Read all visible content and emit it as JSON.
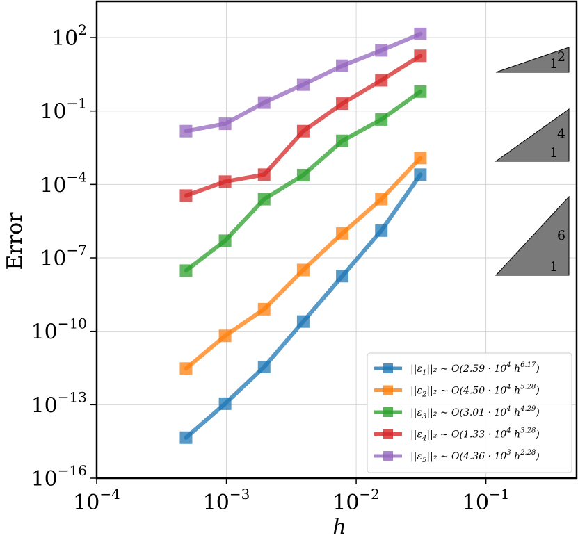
{
  "chart_data": {
    "type": "line",
    "scale": {
      "x": "log",
      "y": "log"
    },
    "xlabel": "h",
    "ylabel": "Error",
    "xlim": [
      0.0001,
      0.5
    ],
    "ylim": [
      1e-16,
      3000
    ],
    "grid": true,
    "x_ticks": [
      {
        "value": 0.0001,
        "base": "10",
        "exp": "−4"
      },
      {
        "value": 0.001,
        "base": "10",
        "exp": "−3"
      },
      {
        "value": 0.01,
        "base": "10",
        "exp": "−2"
      },
      {
        "value": 0.1,
        "base": "10",
        "exp": "−1"
      }
    ],
    "y_ticks": [
      {
        "value": 1e-16,
        "base": "10",
        "exp": "−16"
      },
      {
        "value": 1e-13,
        "base": "10",
        "exp": "−13"
      },
      {
        "value": 1e-10,
        "base": "10",
        "exp": "−10"
      },
      {
        "value": 1e-07,
        "base": "10",
        "exp": "−7"
      },
      {
        "value": 0.0001,
        "base": "10",
        "exp": "−4"
      },
      {
        "value": 0.1,
        "base": "10",
        "exp": "−1"
      },
      {
        "value": 100,
        "base": "10",
        "exp": "2"
      }
    ],
    "x": [
      0.00048828,
      0.00097656,
      0.0019531,
      0.0039063,
      0.0078125,
      0.015625,
      0.03125
    ],
    "series": [
      {
        "name": "||ε₁||₂ ∼ O(2.59 · 10⁴ h^6.17)",
        "color": "#1f77b4",
        "marker": "square",
        "values": [
          4.5e-15,
          1.1e-13,
          3.5e-12,
          2.5e-10,
          1.8e-08,
          1.3e-06,
          0.00025
        ]
      },
      {
        "name": "||ε₂||₂ ∼ O(4.50 · 10⁴ h^5.28)",
        "color": "#ff7f0e",
        "marker": "square",
        "values": [
          3e-12,
          6.5e-11,
          8e-10,
          3.2e-08,
          1e-06,
          2.5e-05,
          0.0012
        ]
      },
      {
        "name": "||ε₃||₂ ∼ O(3.01 · 10⁴ h^4.29)",
        "color": "#2ca02c",
        "marker": "square",
        "values": [
          3e-08,
          5e-07,
          2.5e-05,
          0.00024,
          0.006,
          0.045,
          0.62
        ]
      },
      {
        "name": "||ε₄||₂ ∼ O(1.33 · 10⁴ h^3.28)",
        "color": "#d62728",
        "marker": "square",
        "values": [
          3.5e-05,
          0.00013,
          0.00025,
          0.015,
          0.2,
          1.8,
          18.0
        ]
      },
      {
        "name": "||ε₅||₂ ∼ O(4.36 · 10³ h^2.28)",
        "color": "#9467bd",
        "marker": "square",
        "values": [
          0.015,
          0.03,
          0.22,
          1.2,
          7.0,
          30.0,
          140.0
        ]
      }
    ],
    "slope_triangles": [
      {
        "run": "1",
        "rise": "2"
      },
      {
        "run": "1",
        "rise": "4"
      },
      {
        "run": "1",
        "rise": "6"
      }
    ],
    "legend": {
      "placement": "bottom-right",
      "entries": [
        {
          "norm": "||ε",
          "sub": "1",
          "tail": "||₂ ∼ O(2.59 · 10",
          "exp1": "4",
          "h": " h",
          "exp2": "6.17",
          "close": ")"
        },
        {
          "norm": "||ε",
          "sub": "2",
          "tail": "||₂ ∼ O(4.50 · 10",
          "exp1": "4",
          "h": " h",
          "exp2": "5.28",
          "close": ")"
        },
        {
          "norm": "||ε",
          "sub": "3",
          "tail": "||₂ ∼ O(3.01 · 10",
          "exp1": "4",
          "h": " h",
          "exp2": "4.29",
          "close": ")"
        },
        {
          "norm": "||ε",
          "sub": "4",
          "tail": "||₂ ∼ O(1.33 · 10",
          "exp1": "4",
          "h": " h",
          "exp2": "3.28",
          "close": ")"
        },
        {
          "norm": "||ε",
          "sub": "5",
          "tail": "||₂ ∼ O(4.36 · 10",
          "exp1": "3",
          "h": " h",
          "exp2": "2.28",
          "close": ")"
        }
      ]
    }
  }
}
